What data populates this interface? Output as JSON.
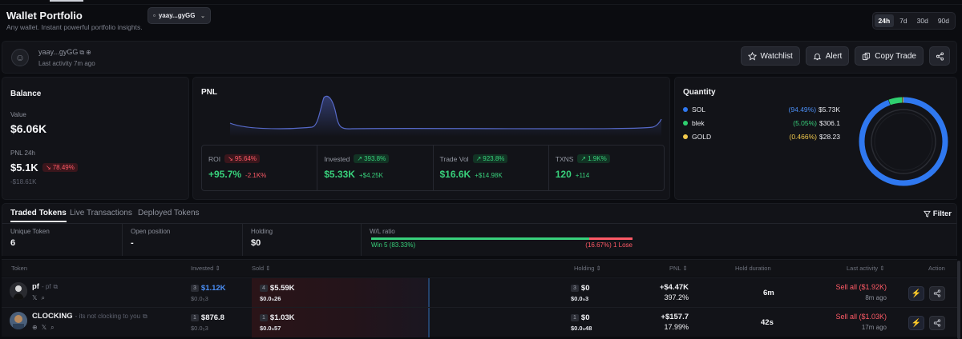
{
  "header": {
    "title": "Wallet Portfolio",
    "subtitle": "Any wallet. Instant powerful portfolio insights.",
    "wallet_selector": "yaay...gyGG",
    "timeframes": [
      "24h",
      "7d",
      "30d",
      "90d"
    ],
    "active_timeframe": "24h"
  },
  "profile": {
    "name": "yaay...gyGG",
    "last_activity": "Last activity 7m ago",
    "buttons": {
      "watchlist": "Watchlist",
      "alert": "Alert",
      "copy_trade": "Copy Trade"
    }
  },
  "balance": {
    "title": "Balance",
    "value_label": "Value",
    "value": "$6.06K",
    "pnl_label": "PNL 24h",
    "pnl_value": "$5.1K",
    "pnl_change": "78.49%",
    "pnl_sub": "-$18.61K"
  },
  "pnl": {
    "title": "PNL",
    "metrics": [
      {
        "label": "ROI",
        "badge": "95.64%",
        "badge_dir": "down",
        "value": "+95.7%",
        "change": "-2.1K%",
        "value_color": "green",
        "change_color": "red"
      },
      {
        "label": "Invested",
        "badge": "393.8%",
        "badge_dir": "up",
        "value": "$5.33K",
        "change": "+$4.25K",
        "value_color": "green",
        "change_color": "green"
      },
      {
        "label": "Trade Vol",
        "badge": "923.8%",
        "badge_dir": "up",
        "value": "$16.6K",
        "change": "+$14.98K",
        "value_color": "green",
        "change_color": "green"
      },
      {
        "label": "TXNS",
        "badge": "1.9K%",
        "badge_dir": "up",
        "value": "120",
        "change": "+114",
        "value_color": "green",
        "change_color": "green"
      }
    ]
  },
  "quantity": {
    "title": "Quantity",
    "items": [
      {
        "name": "SOL",
        "pct": "(94.49%)",
        "value": "$5.73K",
        "color": "#2f78f0",
        "pct_color": "#4a8ef5",
        "share": 94.49
      },
      {
        "name": "blek",
        "pct": "(5.05%)",
        "value": "$306.1",
        "color": "#2fcf6f",
        "pct_color": "#38d07b",
        "share": 5.05
      },
      {
        "name": "GOLD",
        "pct": "(0.466%)",
        "value": "$28.23",
        "color": "#f2c94c",
        "pct_color": "#f2c94c",
        "share": 0.466
      }
    ]
  },
  "tabs": [
    "Traded Tokens",
    "Live Transactions",
    "Deployed Tokens"
  ],
  "filter_label": "Filter",
  "summary": {
    "unique_token_label": "Unique Token",
    "unique_token": "6",
    "open_position_label": "Open position",
    "open_position": "-",
    "holding_label": "Holding",
    "holding": "$0",
    "wl_label": "W/L ratio",
    "win_text": "Win 5 (83.33%)",
    "lose_text": "(16.67%) 1 Lose",
    "win_ratio": 0.8333
  },
  "table": {
    "columns": [
      "Token",
      "Invested",
      "Sold",
      "Holding",
      "PNL",
      "Hold duration",
      "Last activity",
      "Action"
    ],
    "rows": [
      {
        "name": "pf",
        "subname": "- pf",
        "inv_count": "3",
        "invested": "$1.12K",
        "invested_price": "$0.0₅3",
        "sold_count": "4",
        "sold": "$5.59K",
        "sold_price": "$0.0₅26",
        "hold_count": "3",
        "holding": "$0",
        "holding_price": "$0.0₅3",
        "pnl": "+$4.47K",
        "pnl_pct": "397.2%",
        "duration": "6m",
        "last_action": "Sell all ($1.92K)",
        "last_time": "8m ago"
      },
      {
        "name": "CLOCKING",
        "subname": "- its not clocking to you",
        "inv_count": "1",
        "invested": "$876.8",
        "invested_price": "$0.0₅3",
        "sold_count": "1",
        "sold": "$1.03K",
        "sold_price": "$0.0₅57",
        "hold_count": "1",
        "holding": "$0",
        "holding_price": "$0.0₅48",
        "pnl": "+$157.7",
        "pnl_pct": "17.99%",
        "duration": "42s",
        "last_action": "Sell all ($1.03K)",
        "last_time": "17m ago"
      }
    ]
  }
}
